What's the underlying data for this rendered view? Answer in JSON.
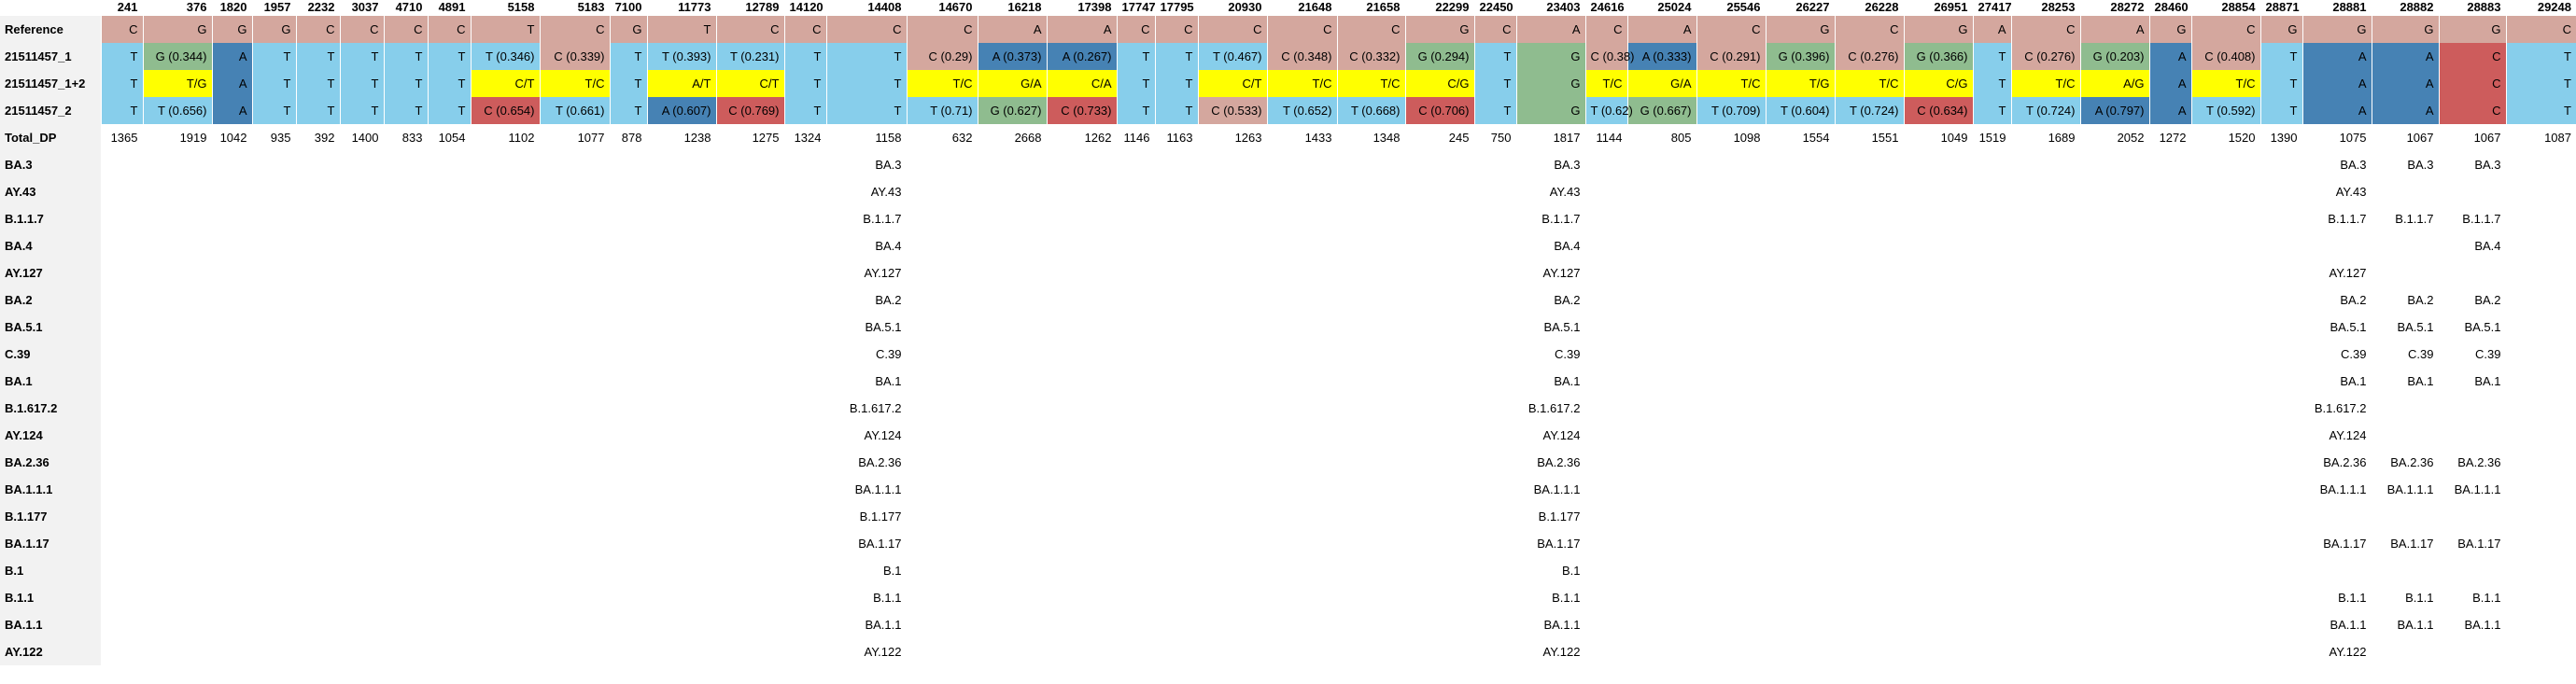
{
  "positions": [
    "241",
    "376",
    "1820",
    "1957",
    "2232",
    "3037",
    "4710",
    "4891",
    "5158",
    "5183",
    "7100",
    "11773",
    "12789",
    "14120",
    "14408",
    "14670",
    "16218",
    "17398",
    "17747",
    "17795",
    "20930",
    "21648",
    "21658",
    "22299",
    "22450",
    "23403",
    "24616",
    "25024",
    "25546",
    "26227",
    "26228",
    "26951",
    "27417",
    "28253",
    "28272",
    "28460",
    "28854",
    "28871",
    "28881",
    "28882",
    "28883",
    "29248"
  ],
  "row_labels": {
    "reference": "Reference",
    "s1": "21511457_1",
    "s12": "21511457_1+2",
    "s2": "21511457_2",
    "total": "Total_DP"
  },
  "reference": [
    "C",
    "G",
    "G",
    "G",
    "C",
    "C",
    "C",
    "C",
    "T",
    "C",
    "G",
    "T",
    "C",
    "C",
    "C",
    "C",
    "A",
    "A",
    "C",
    "C",
    "C",
    "C",
    "C",
    "G",
    "C",
    "A",
    "C",
    "A",
    "C",
    "G",
    "C",
    "G",
    "A",
    "C",
    "A",
    "G",
    "C",
    "G",
    "G",
    "G",
    "G",
    "C"
  ],
  "s1": [
    "T",
    "G (0.344)",
    "A",
    "T",
    "T",
    "T",
    "T",
    "T",
    "T (0.346)",
    "C (0.339)",
    "T",
    "T (0.393)",
    "T (0.231)",
    "T",
    "T",
    "C (0.29)",
    "A (0.373)",
    "A (0.267)",
    "T",
    "T",
    "T (0.467)",
    "C (0.348)",
    "C (0.332)",
    "G (0.294)",
    "T",
    "G",
    "C (0.38)",
    "A (0.333)",
    "C (0.291)",
    "G (0.396)",
    "C (0.276)",
    "G (0.366)",
    "T",
    "C (0.276)",
    "G (0.203)",
    "A",
    "C (0.408)",
    "T",
    "A",
    "A",
    "C",
    "T"
  ],
  "s12": [
    "T",
    "T/G",
    "A",
    "T",
    "T",
    "T",
    "T",
    "T",
    "C/T",
    "T/C",
    "T",
    "A/T",
    "C/T",
    "T",
    "T",
    "T/C",
    "G/A",
    "C/A",
    "T",
    "T",
    "C/T",
    "T/C",
    "T/C",
    "C/G",
    "T",
    "G",
    "T/C",
    "G/A",
    "T/C",
    "T/G",
    "T/C",
    "C/G",
    "T",
    "T/C",
    "A/G",
    "A",
    "T/C",
    "T",
    "A",
    "A",
    "C",
    "T"
  ],
  "s2": [
    "T",
    "T (0.656)",
    "A",
    "T",
    "T",
    "T",
    "T",
    "T",
    "C (0.654)",
    "T (0.661)",
    "T",
    "A (0.607)",
    "C (0.769)",
    "T",
    "T",
    "T (0.71)",
    "G (0.627)",
    "C (0.733)",
    "T",
    "T",
    "C (0.533)",
    "T (0.652)",
    "T (0.668)",
    "C (0.706)",
    "T",
    "G",
    "T (0.62)",
    "G (0.667)",
    "T (0.709)",
    "T (0.604)",
    "T (0.724)",
    "C (0.634)",
    "T",
    "T (0.724)",
    "A (0.797)",
    "A",
    "T (0.592)",
    "T",
    "A",
    "A",
    "C",
    "T"
  ],
  "total": [
    "1365",
    "1919",
    "1042",
    "935",
    "392",
    "1400",
    "833",
    "1054",
    "1102",
    "1077",
    "878",
    "1238",
    "1275",
    "1324",
    "1158",
    "632",
    "2668",
    "1262",
    "1146",
    "1163",
    "1263",
    "1433",
    "1348",
    "245",
    "750",
    "1817",
    "1144",
    "805",
    "1098",
    "1554",
    "1551",
    "1049",
    "1519",
    "1689",
    "2052",
    "1272",
    "1520",
    "1390",
    "1075",
    "1067",
    "1067",
    "1087"
  ],
  "lineage_rows": [
    {
      "label": "BA.3",
      "cells": {
        "14408": "BA.3",
        "23403": "BA.3",
        "28881": "BA.3",
        "28882": "BA.3",
        "28883": "BA.3"
      }
    },
    {
      "label": "AY.43",
      "cells": {
        "14408": "AY.43",
        "23403": "AY.43",
        "28881": "AY.43"
      }
    },
    {
      "label": "B.1.1.7",
      "cells": {
        "14408": "B.1.1.7",
        "23403": "B.1.1.7",
        "28881": "B.1.1.7",
        "28882": "B.1.1.7",
        "28883": "B.1.1.7"
      }
    },
    {
      "label": "BA.4",
      "cells": {
        "14408": "BA.4",
        "23403": "BA.4",
        "28883": "BA.4"
      }
    },
    {
      "label": "AY.127",
      "cells": {
        "14408": "AY.127",
        "23403": "AY.127",
        "28881": "AY.127"
      }
    },
    {
      "label": "BA.2",
      "cells": {
        "14408": "BA.2",
        "23403": "BA.2",
        "28881": "BA.2",
        "28882": "BA.2",
        "28883": "BA.2"
      }
    },
    {
      "label": "BA.5.1",
      "cells": {
        "14408": "BA.5.1",
        "23403": "BA.5.1",
        "28881": "BA.5.1",
        "28882": "BA.5.1",
        "28883": "BA.5.1"
      }
    },
    {
      "label": "C.39",
      "cells": {
        "14408": "C.39",
        "23403": "C.39",
        "28881": "C.39",
        "28882": "C.39",
        "28883": "C.39"
      }
    },
    {
      "label": "BA.1",
      "cells": {
        "14408": "BA.1",
        "23403": "BA.1",
        "28881": "BA.1",
        "28882": "BA.1",
        "28883": "BA.1"
      }
    },
    {
      "label": "B.1.617.2",
      "cells": {
        "14408": "B.1.617.2",
        "23403": "B.1.617.2",
        "28881": "B.1.617.2"
      }
    },
    {
      "label": "AY.124",
      "cells": {
        "14408": "AY.124",
        "23403": "AY.124",
        "28881": "AY.124"
      }
    },
    {
      "label": "BA.2.36",
      "cells": {
        "14408": "BA.2.36",
        "23403": "BA.2.36",
        "28881": "BA.2.36",
        "28882": "BA.2.36",
        "28883": "BA.2.36"
      }
    },
    {
      "label": "BA.1.1.1",
      "cells": {
        "14408": "BA.1.1.1",
        "23403": "BA.1.1.1",
        "28881": "BA.1.1.1",
        "28882": "BA.1.1.1",
        "28883": "BA.1.1.1"
      }
    },
    {
      "label": "B.1.177",
      "cells": {
        "14408": "B.1.177",
        "23403": "B.1.177"
      }
    },
    {
      "label": "BA.1.17",
      "cells": {
        "14408": "BA.1.17",
        "23403": "BA.1.17",
        "28881": "BA.1.17",
        "28882": "BA.1.17",
        "28883": "BA.1.17"
      }
    },
    {
      "label": "B.1",
      "cells": {
        "14408": "B.1",
        "23403": "B.1"
      }
    },
    {
      "label": "B.1.1",
      "cells": {
        "14408": "B.1.1",
        "23403": "B.1.1",
        "28881": "B.1.1",
        "28882": "B.1.1",
        "28883": "B.1.1"
      }
    },
    {
      "label": "BA.1.1",
      "cells": {
        "14408": "BA.1.1",
        "23403": "BA.1.1",
        "28881": "BA.1.1",
        "28882": "BA.1.1",
        "28883": "BA.1.1"
      }
    },
    {
      "label": "AY.122",
      "cells": {
        "14408": "AY.122",
        "23403": "AY.122",
        "28881": "AY.122"
      }
    }
  ],
  "colors": {
    "reference": "#d4a79e",
    "T": "#87ceeb",
    "A": "#4682b4",
    "G": "#8fbc8f",
    "C": "#cd5c5c",
    "mixed": "#ffff00",
    "C_light": "#d4a79e",
    "label_bg": "#f2f2f2"
  }
}
